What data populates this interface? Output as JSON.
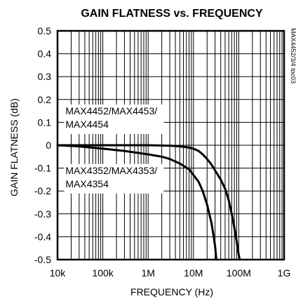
{
  "chart_data": {
    "type": "line",
    "title": "GAIN FLATNESS vs. FREQUENCY",
    "xlabel": "FREQUENCY (Hz)",
    "ylabel": "GAIN FLATNESS (dB)",
    "x_scale": "log",
    "xlim": [
      10000,
      1000000000
    ],
    "ylim": [
      -0.5,
      0.5
    ],
    "grid": true,
    "x_ticks": [
      {
        "value": 10000,
        "label": "10k"
      },
      {
        "value": 100000,
        "label": "100k"
      },
      {
        "value": 1000000,
        "label": "1M"
      },
      {
        "value": 10000000,
        "label": "10M"
      },
      {
        "value": 100000000,
        "label": "100M"
      },
      {
        "value": 1000000000,
        "label": "1G"
      }
    ],
    "y_ticks": [
      {
        "value": 0.5,
        "label": "0.5"
      },
      {
        "value": 0.4,
        "label": "0.4"
      },
      {
        "value": 0.3,
        "label": "0.3"
      },
      {
        "value": 0.2,
        "label": "0.2"
      },
      {
        "value": 0.1,
        "label": "0.1"
      },
      {
        "value": 0,
        "label": "0"
      },
      {
        "value": -0.1,
        "label": "-0.1"
      },
      {
        "value": -0.2,
        "label": "-0.2"
      },
      {
        "value": -0.3,
        "label": "-0.3"
      },
      {
        "value": -0.4,
        "label": "-0.4"
      },
      {
        "value": -0.5,
        "label": "-0.5"
      }
    ],
    "series": [
      {
        "name": "MAX4452/MAX4453/MAX4454",
        "x": [
          10000,
          20000,
          50000,
          100000,
          300000,
          1000000,
          3000000,
          5000000,
          8000000,
          10000000,
          13000000,
          16000000,
          20000000,
          25000000,
          30000000,
          40000000,
          50000000,
          60000000,
          70000000,
          80000000,
          90000000,
          100000000,
          105000000
        ],
        "y": [
          0.0,
          0.0,
          0.0,
          0.0,
          0.0,
          0.0,
          -0.002,
          -0.005,
          -0.01,
          -0.015,
          -0.025,
          -0.04,
          -0.06,
          -0.085,
          -0.11,
          -0.15,
          -0.19,
          -0.24,
          -0.3,
          -0.36,
          -0.42,
          -0.48,
          -0.5
        ]
      },
      {
        "name": "MAX4352/MAX4353/MAX4354",
        "x": [
          10000,
          30000,
          100000,
          300000,
          1000000,
          2000000,
          3000000,
          5000000,
          8000000,
          10000000,
          13000000,
          16000000,
          20000000,
          25000000,
          28000000,
          30000000,
          32000000
        ],
        "y": [
          0.0,
          -0.005,
          -0.015,
          -0.025,
          -0.04,
          -0.05,
          -0.06,
          -0.08,
          -0.105,
          -0.13,
          -0.16,
          -0.2,
          -0.26,
          -0.34,
          -0.4,
          -0.44,
          -0.5
        ]
      }
    ],
    "annotations": [
      {
        "lines": [
          "MAX4452/MAX4453/",
          "MAX4454"
        ],
        "anchor_x": 15000,
        "anchor_y": 0.135
      },
      {
        "lines": [
          "MAX4352/MAX4353/",
          "MAX4354"
        ],
        "anchor_x": 15000,
        "anchor_y": -0.125
      }
    ],
    "side_code": "MAX4452/3/4 toc03"
  }
}
